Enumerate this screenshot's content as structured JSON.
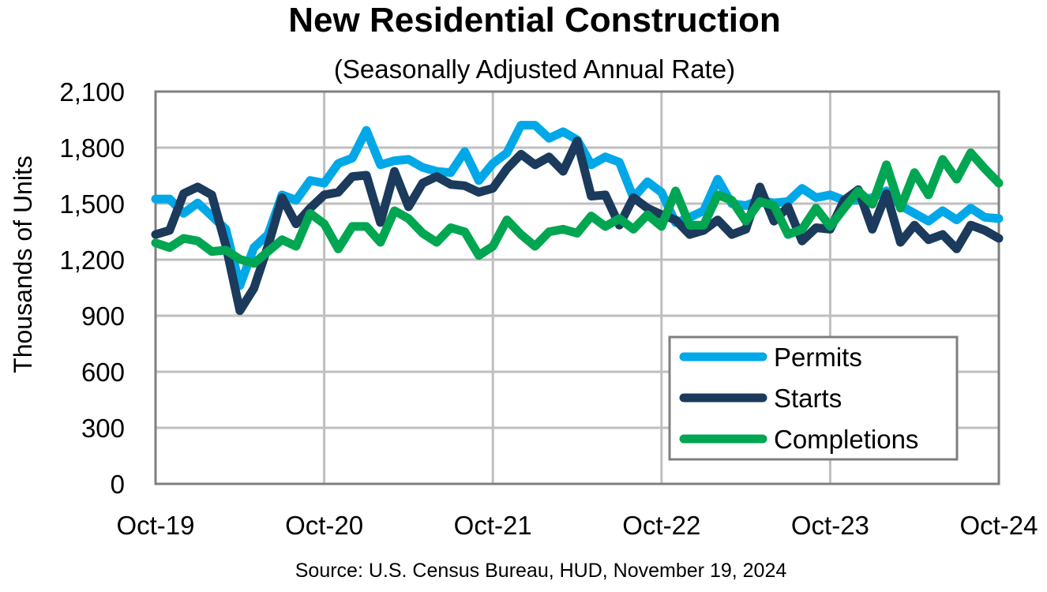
{
  "chart_data": {
    "type": "line",
    "title": "New Residential Construction",
    "subtitle": "(Seasonally Adjusted Annual Rate)",
    "xlabel": "",
    "ylabel": "Thousands of Units",
    "ylim": [
      0,
      2100
    ],
    "yticks": [
      0,
      300,
      600,
      900,
      1200,
      1500,
      1800,
      2100
    ],
    "ytick_labels": [
      "0",
      "300",
      "600",
      "900",
      "1,200",
      "1,500",
      "1,800",
      "2,100"
    ],
    "xtick_labels": [
      "Oct-19",
      "Oct-20",
      "Oct-21",
      "Oct-22",
      "Oct-23",
      "Oct-24"
    ],
    "x_start": "Oct-19",
    "x_end": "Oct-24",
    "x_unit": "month",
    "grid": true,
    "legend_position": "bottom-right",
    "series": [
      {
        "name": "Permits",
        "color": "#00A8E8",
        "values": [
          1525,
          1525,
          1448,
          1504,
          1434,
          1363,
          1061,
          1265,
          1335,
          1547,
          1518,
          1624,
          1610,
          1715,
          1744,
          1892,
          1708,
          1730,
          1737,
          1694,
          1673,
          1666,
          1779,
          1624,
          1715,
          1772,
          1920,
          1920,
          1850,
          1885,
          1842,
          1708,
          1750,
          1722,
          1532,
          1617,
          1560,
          1398,
          1426,
          1462,
          1631,
          1500,
          1490,
          1518,
          1504,
          1511,
          1582,
          1532,
          1547,
          1518,
          1518,
          1532,
          1568,
          1490,
          1448,
          1406,
          1462,
          1413,
          1476,
          1427,
          1420
        ]
      },
      {
        "name": "Starts",
        "color": "#1B3A5C",
        "values": [
          1335,
          1357,
          1554,
          1589,
          1547,
          1276,
          927,
          1047,
          1273,
          1532,
          1392,
          1476,
          1547,
          1561,
          1645,
          1652,
          1399,
          1673,
          1483,
          1610,
          1645,
          1603,
          1596,
          1561,
          1582,
          1687,
          1765,
          1708,
          1750,
          1673,
          1835,
          1540,
          1547,
          1385,
          1532,
          1476,
          1441,
          1413,
          1335,
          1357,
          1413,
          1335,
          1363,
          1589,
          1406,
          1483,
          1300,
          1371,
          1363,
          1518,
          1575,
          1363,
          1554,
          1293,
          1385,
          1307,
          1335,
          1258,
          1385,
          1357,
          1314
        ]
      },
      {
        "name": "Completions",
        "color": "#00A651",
        "values": [
          1290,
          1265,
          1314,
          1300,
          1244,
          1251,
          1202,
          1180,
          1244,
          1307,
          1272,
          1448,
          1392,
          1258,
          1378,
          1378,
          1293,
          1462,
          1420,
          1342,
          1293,
          1371,
          1349,
          1223,
          1272,
          1413,
          1335,
          1272,
          1349,
          1363,
          1342,
          1434,
          1378,
          1420,
          1363,
          1441,
          1378,
          1568,
          1385,
          1385,
          1547,
          1518,
          1406,
          1511,
          1490,
          1335,
          1363,
          1476,
          1378,
          1476,
          1568,
          1497,
          1708,
          1476,
          1666,
          1547,
          1737,
          1631,
          1772,
          1687,
          1610
        ]
      }
    ],
    "source": "Source:  U.S. Census Bureau, HUD, November 19, 2024"
  }
}
